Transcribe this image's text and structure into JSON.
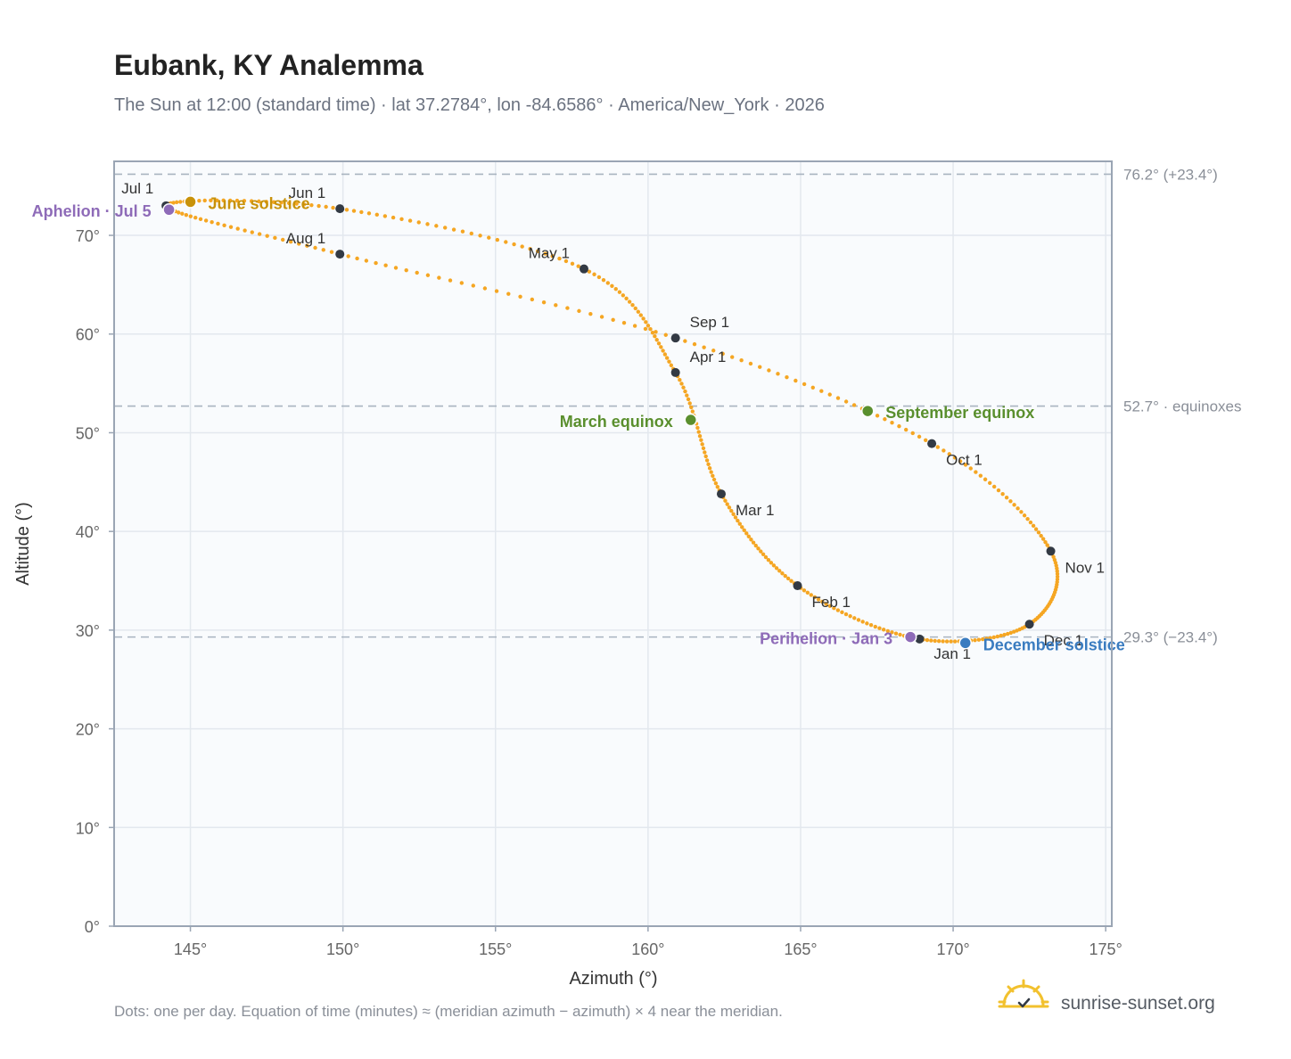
{
  "chart_data": {
    "type": "scatter",
    "title": "Eubank, KY Analemma",
    "subtitle": "The Sun at 12:00 (standard time) · lat 37.2784°, lon -84.6586° · America/New_York · 2026",
    "xlabel": "Azimuth (°)",
    "ylabel": "Altitude (°)",
    "xlim": [
      142.5,
      175.2
    ],
    "ylim": [
      0,
      77.5
    ],
    "xticks": [
      145,
      150,
      155,
      160,
      165,
      170,
      175
    ],
    "yticks": [
      0,
      10,
      20,
      30,
      40,
      50,
      60,
      70
    ],
    "x_tick_suffix": "°",
    "y_tick_suffix": "°",
    "grid": true,
    "series_color": "#f5a623",
    "reference_lines": [
      {
        "y": 76.2,
        "label": "76.2° (+23.4°)"
      },
      {
        "y": 52.7,
        "label": "52.7° · equinoxes"
      },
      {
        "y": 29.3,
        "label": "29.3° (−23.4°)"
      }
    ],
    "month_markers": [
      {
        "label": "Jan 1",
        "azimuth": 168.9,
        "altitude": 29.1
      },
      {
        "label": "Feb 1",
        "azimuth": 164.9,
        "altitude": 34.5
      },
      {
        "label": "Mar 1",
        "azimuth": 162.4,
        "altitude": 43.8
      },
      {
        "label": "Apr 1",
        "azimuth": 160.9,
        "altitude": 56.1
      },
      {
        "label": "May 1",
        "azimuth": 157.9,
        "altitude": 66.6
      },
      {
        "label": "Jun 1",
        "azimuth": 149.9,
        "altitude": 72.7
      },
      {
        "label": "Jul 1",
        "azimuth": 144.2,
        "altitude": 73.0
      },
      {
        "label": "Aug 1",
        "azimuth": 149.9,
        "altitude": 68.1
      },
      {
        "label": "Sep 1",
        "azimuth": 160.9,
        "altitude": 59.6
      },
      {
        "label": "Oct 1",
        "azimuth": 169.3,
        "altitude": 48.9
      },
      {
        "label": "Nov 1",
        "azimuth": 173.2,
        "altitude": 38.0
      },
      {
        "label": "Dec 1",
        "azimuth": 172.5,
        "altitude": 30.6
      }
    ],
    "events": [
      {
        "label": "June solstice",
        "azimuth": 145.0,
        "altitude": 73.4,
        "color": "#c8920a"
      },
      {
        "label": "Aphelion · Jul 5",
        "azimuth": 144.3,
        "altitude": 72.6,
        "color": "#8e6bb8"
      },
      {
        "label": "March equinox",
        "azimuth": 161.4,
        "altitude": 51.3,
        "color": "#5a8f2e"
      },
      {
        "label": "September equinox",
        "azimuth": 167.2,
        "altitude": 52.2,
        "color": "#5a8f2e"
      },
      {
        "label": "Perihelion · Jan 3",
        "azimuth": 168.6,
        "altitude": 29.3,
        "color": "#8e6bb8"
      },
      {
        "label": "December solstice",
        "azimuth": 170.4,
        "altitude": 28.7,
        "color": "#3a7cc0"
      }
    ]
  },
  "footnote": "Dots: one per day. Equation of time (minutes) ≈ (meridian azimuth − azimuth) × 4 near the meridian.",
  "brand": {
    "name": "sunrise-sunset.org",
    "icon": "sun-icon"
  }
}
